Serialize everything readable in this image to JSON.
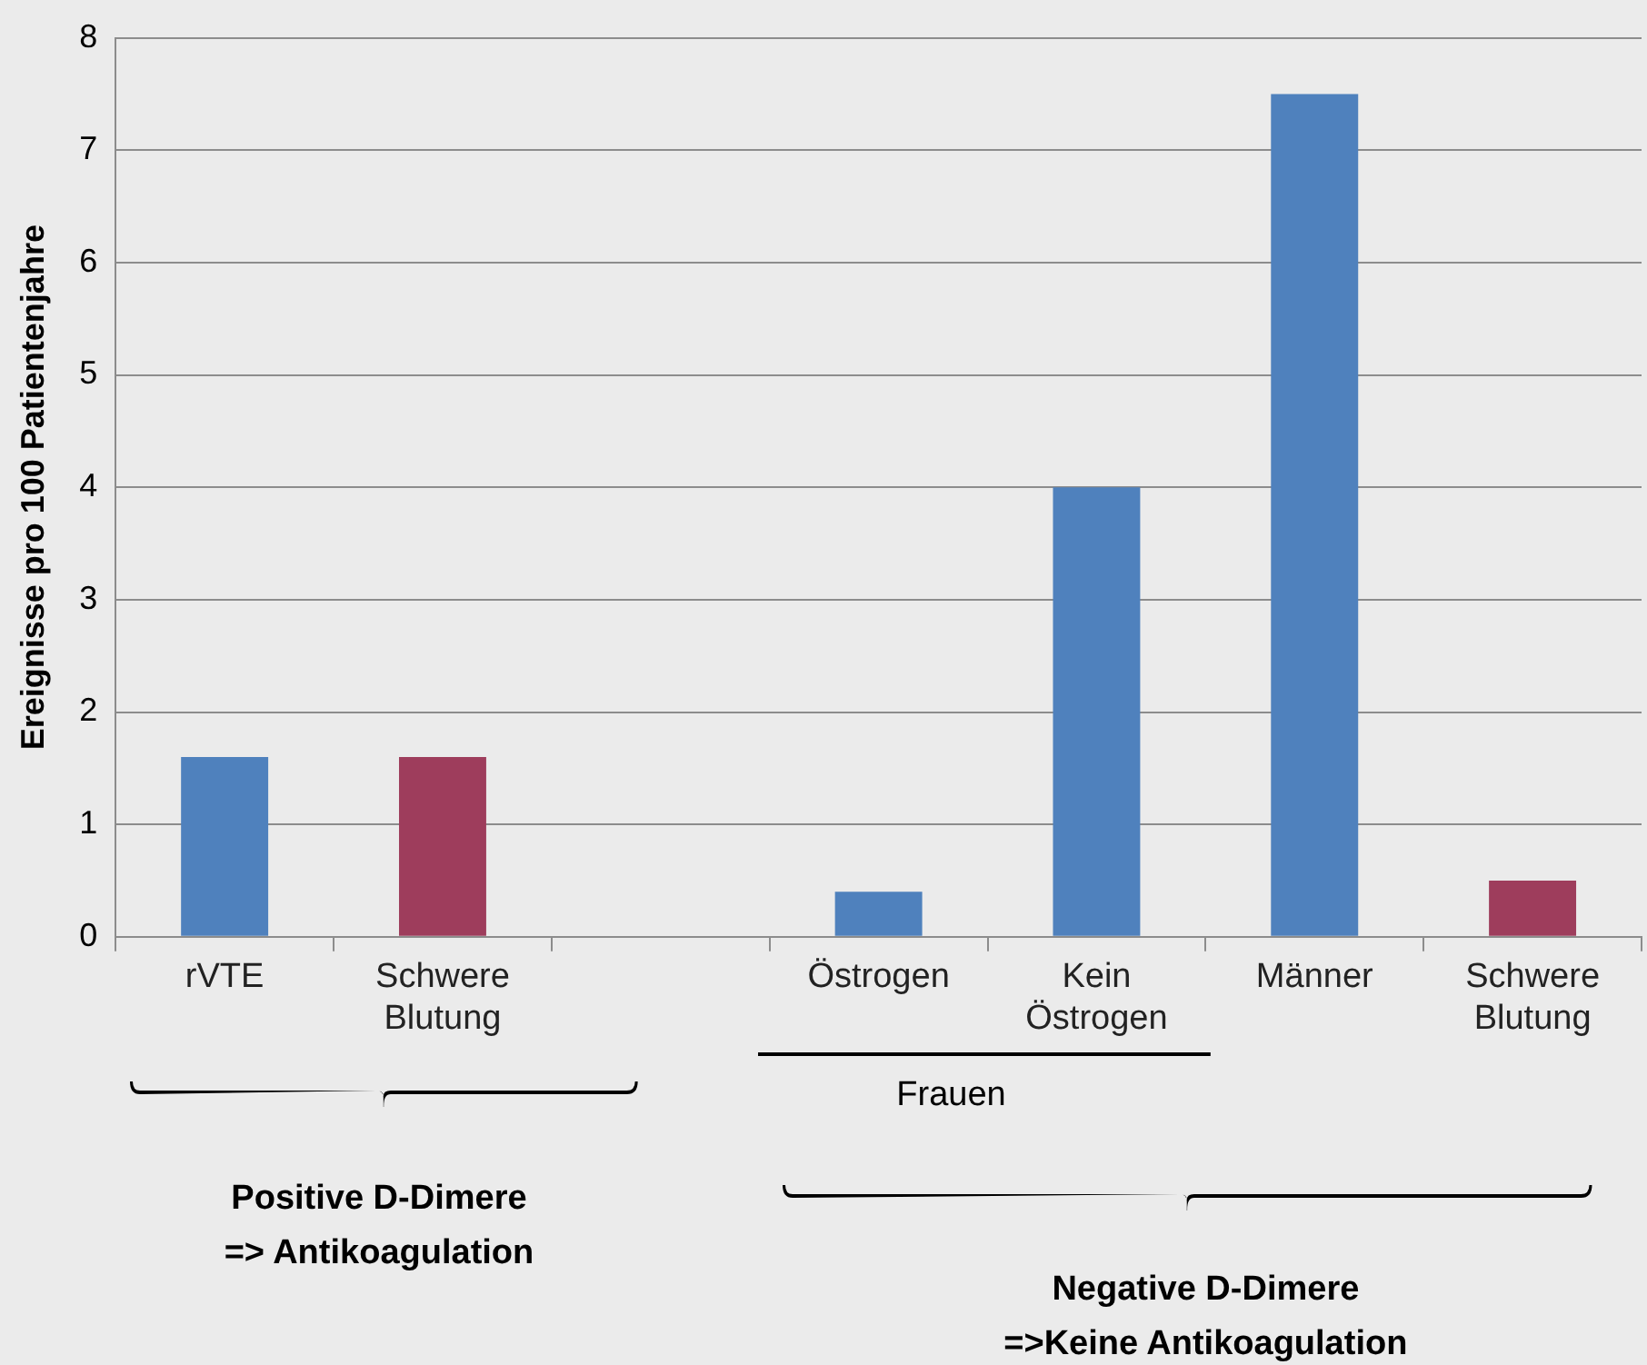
{
  "chart_data": {
    "type": "bar",
    "ylabel": "Ereignisse pro 100 Patientenjahre",
    "categories": [
      "rVTE",
      "Schwere Blutung",
      null,
      "Östrogen",
      "Kein Östrogen",
      "Männer",
      "Schwere Blutung"
    ],
    "values": [
      1.6,
      1.6,
      null,
      0.4,
      4.0,
      7.5,
      0.5
    ],
    "colors": [
      "#4f81bd",
      "#9e3d5c",
      null,
      "#4f81bd",
      "#4f81bd",
      "#4f81bd",
      "#9e3d5c"
    ],
    "ylim": [
      0,
      8
    ],
    "yticks": [
      0,
      1,
      2,
      3,
      4,
      5,
      6,
      7,
      8
    ],
    "grid": "y",
    "legend": false,
    "annotations": [
      "Frauen",
      "Positive D-Dimere\n=> Antikoagulation",
      "Negative D-Dimere\n=>Keine Antikoagulation"
    ]
  }
}
